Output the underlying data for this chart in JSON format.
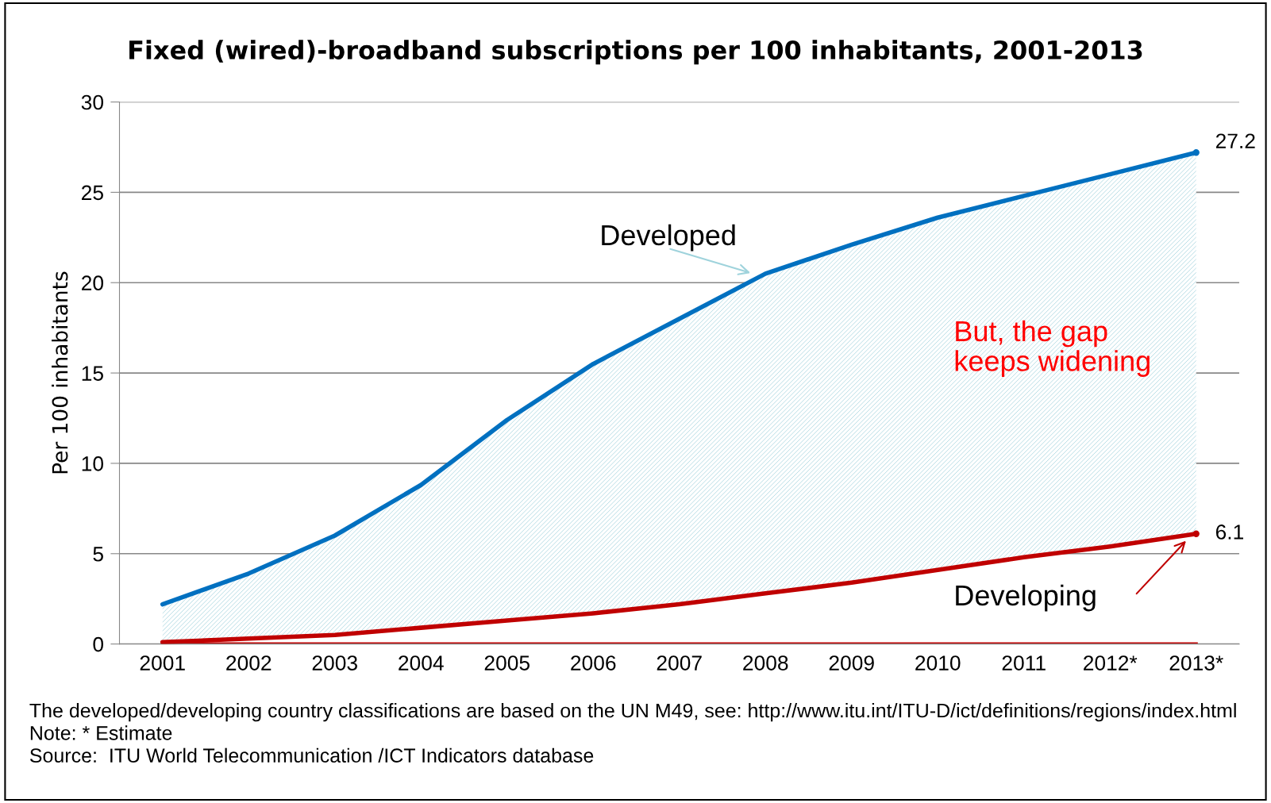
{
  "chart_data": {
    "type": "line",
    "title": "Fixed (wired)-broadband subscriptions per 100 inhabitants, 2001-2013",
    "ylabel": "Per 100 inhabitants",
    "categories": [
      "2001",
      "2002",
      "2003",
      "2004",
      "2005",
      "2006",
      "2007",
      "2008",
      "2009",
      "2010",
      "2011",
      "2012*",
      "2013*"
    ],
    "series": [
      {
        "name": "Developed",
        "color": "#0070c0",
        "values": [
          2.2,
          3.9,
          6.0,
          8.8,
          12.4,
          15.5,
          18.0,
          20.5,
          22.1,
          23.6,
          24.8,
          26.0,
          27.2
        ],
        "lower": [
          0.1,
          0.3,
          0.5,
          0.9,
          1.3,
          1.7,
          2.2,
          2.8,
          3.4,
          4.1,
          4.8,
          5.4,
          6.1
        ],
        "upper": [
          2.2,
          3.9,
          6.0,
          8.8,
          12.4,
          15.5,
          18.0,
          20.5,
          22.1,
          23.6,
          24.8,
          26.0,
          27.2
        ],
        "value_labels": [
          null,
          null,
          null,
          null,
          null,
          null,
          null,
          null,
          null,
          null,
          null,
          null,
          "27.2"
        ]
      },
      {
        "name": "Developing",
        "color": "#c00000",
        "values": [
          0.1,
          0.3,
          0.5,
          0.9,
          1.3,
          1.7,
          2.2,
          2.8,
          3.4,
          4.1,
          4.8,
          5.4,
          6.1
        ],
        "value_labels": [
          null,
          null,
          null,
          null,
          null,
          null,
          null,
          null,
          null,
          null,
          null,
          null,
          "6.1"
        ]
      }
    ],
    "ylim": [
      0,
      30
    ],
    "yticks": [
      0,
      5,
      10,
      15,
      20,
      25,
      30
    ],
    "grid": "y",
    "marker": "none",
    "line_style": "solid",
    "ref_lines": [
      {
        "axis": "y",
        "value": 0,
        "color": "#c00000"
      }
    ],
    "annotations": [
      "But, the gap keeps widening",
      "The developed/developing country classifications are based on the UN M49, see: http://www.itu.int/ITU-D/ict/definitions/regions/index.html",
      "Note: * Estimate",
      "Source:  ITU World Telecommunication /ICT Indicators database"
    ]
  }
}
